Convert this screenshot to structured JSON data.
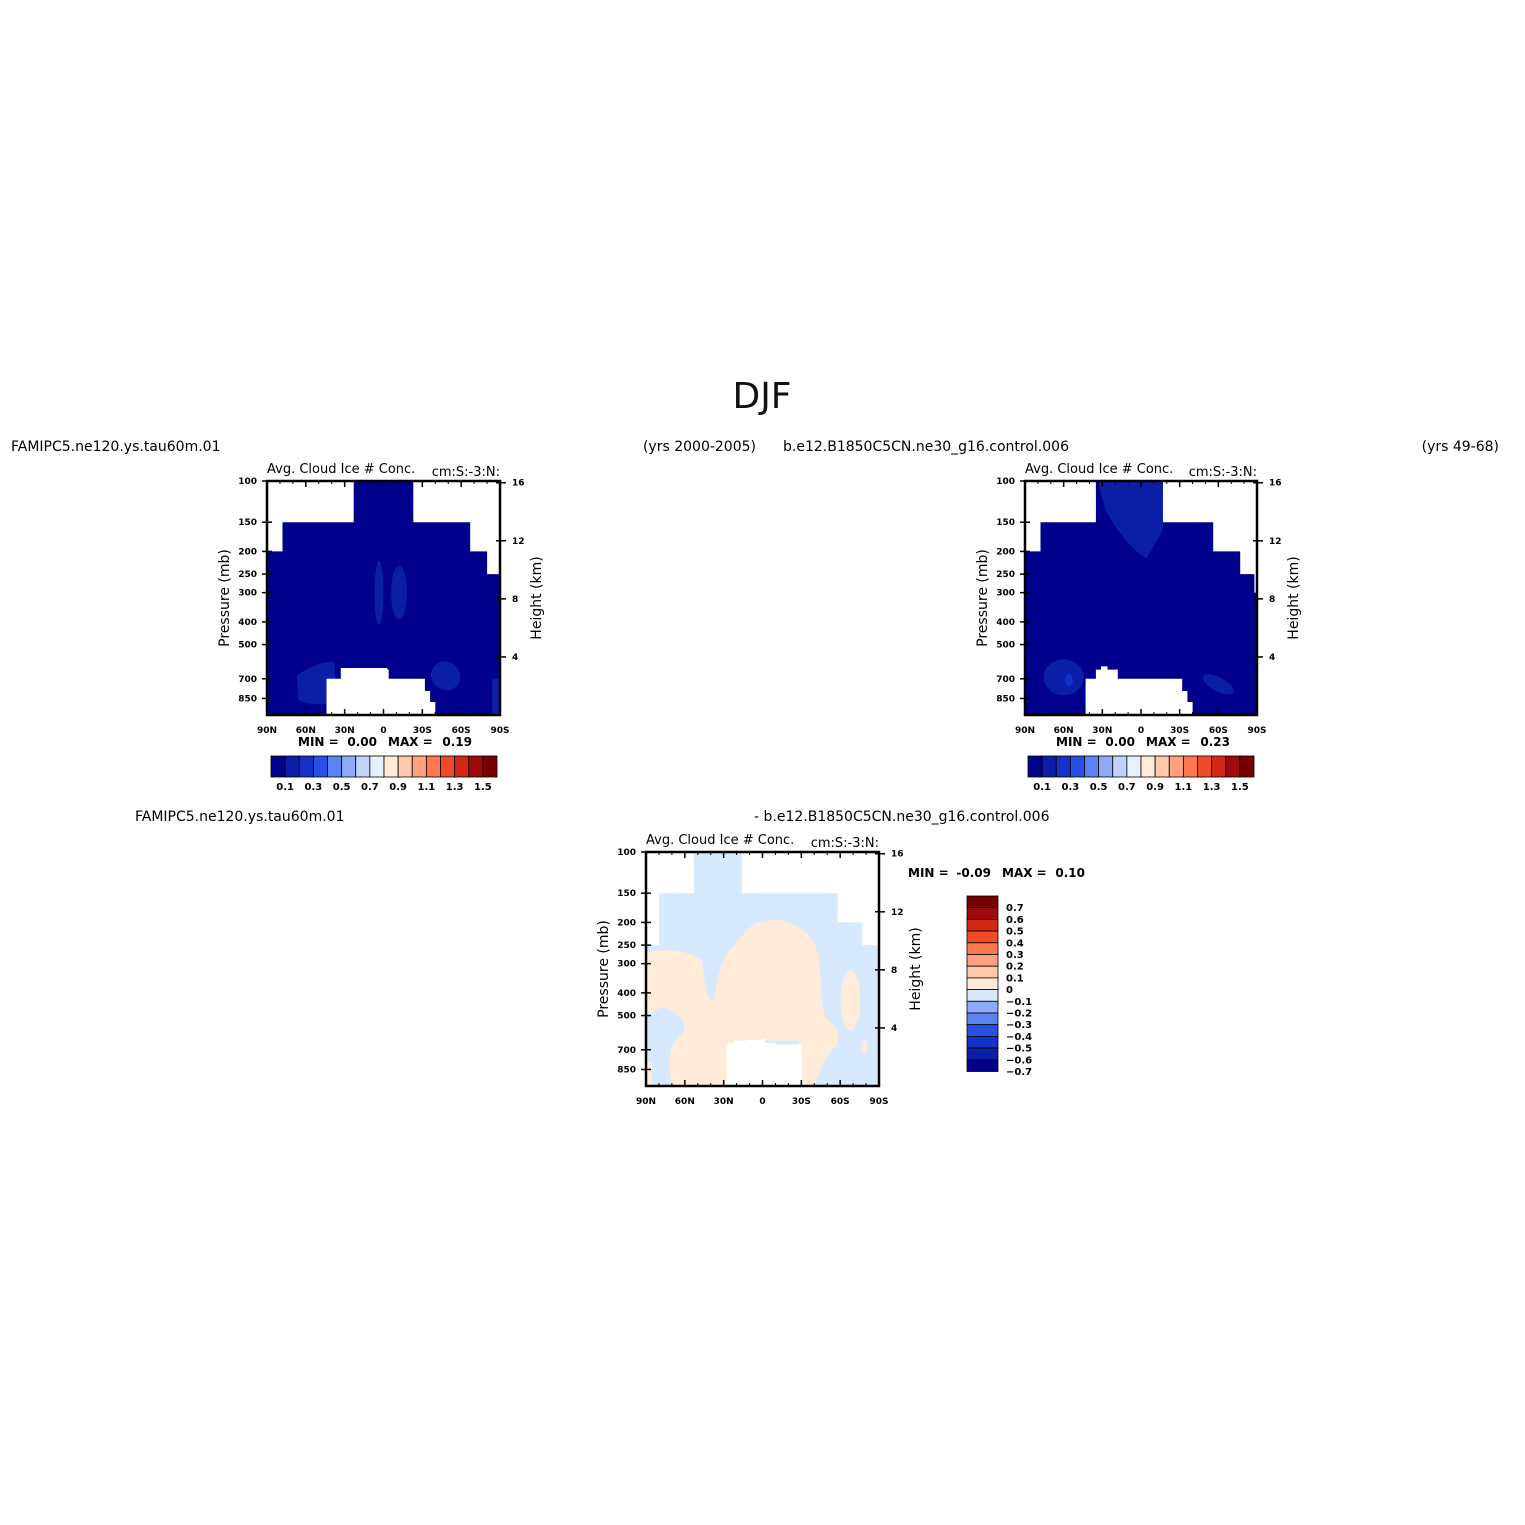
{
  "page": {
    "title": "DJF"
  },
  "colors": {
    "seq": [
      "#00008C",
      "#0A1EA8",
      "#1432C8",
      "#2850E6",
      "#5A82F0",
      "#8CAAF5",
      "#BED2FA",
      "#E6F0FF",
      "#FFEBD7",
      "#FFC8AA",
      "#FFA080",
      "#FF7850",
      "#F04B28",
      "#D22814",
      "#A00A0A",
      "#780000"
    ],
    "diff": [
      "#00008C",
      "#0A1EA8",
      "#1432C8",
      "#2850E6",
      "#5A82F0",
      "#8CAAF5",
      "#D7E9FF",
      "#FFEBD7",
      "#FFC8AA",
      "#FFA080",
      "#FF7850",
      "#F04B28",
      "#D22814",
      "#A00A0A",
      "#780000"
    ]
  },
  "chart_data": [
    {
      "type": "heatmap",
      "case": "FAMIPC5.ne120.ys.tau60m.01",
      "years": "(yrs 2000-2005)",
      "title": "Avg. Cloud Ice # Conc.",
      "units": "cm:S:-3:N:",
      "xlabel": "",
      "ylabel": "Pressure (mb)",
      "ylabel_right": "Height (km)",
      "x_ticks": [
        "90N",
        "60N",
        "30N",
        "0",
        "30S",
        "60S",
        "90S"
      ],
      "y_ticks": [
        100,
        150,
        200,
        250,
        300,
        400,
        500,
        700,
        850
      ],
      "y_right_ticks": [
        4,
        8,
        12,
        16
      ],
      "min_label": "MIN =",
      "min": "0.00",
      "max_label": "MAX =",
      "max": "0.19",
      "levels": [
        "0.1",
        "0.3",
        "0.5",
        "0.7",
        "0.9",
        "1.1",
        "1.3",
        "1.5"
      ],
      "field": "mostly 0-0.1 (darkest blue) with small 0.1-0.2 patches in upper tropics and lower mid-latitudes"
    },
    {
      "type": "heatmap",
      "case": "b.e12.B1850C5CN.ne30_g16.control.006",
      "years": "(yrs 49-68)",
      "title": "Avg. Cloud Ice # Conc.",
      "units": "cm:S:-3:N:",
      "xlabel": "",
      "ylabel": "Pressure (mb)",
      "ylabel_right": "Height (km)",
      "x_ticks": [
        "90N",
        "60N",
        "30N",
        "0",
        "30S",
        "60S",
        "90S"
      ],
      "y_ticks": [
        100,
        150,
        200,
        250,
        300,
        400,
        500,
        700,
        850
      ],
      "y_right_ticks": [
        4,
        8,
        12,
        16
      ],
      "min_label": "MIN =",
      "min": "0.00",
      "max_label": "MAX =",
      "max": "0.23",
      "levels": [
        "0.1",
        "0.3",
        "0.5",
        "0.7",
        "0.9",
        "1.1",
        "1.3",
        "1.5"
      ],
      "field": "mostly 0-0.1 (darkest blue) with 0.1-0.2 near tropical tropopause and lower mid-latitudes"
    },
    {
      "type": "heatmap",
      "case": "FAMIPC5.ne120.ys.tau60m.01",
      "case2": "- b.e12.B1850C5CN.ne30_g16.control.006",
      "title": "Avg. Cloud Ice # Conc.",
      "units": "cm:S:-3:N:",
      "xlabel": "",
      "ylabel": "Pressure (mb)",
      "ylabel_right": "Height (km)",
      "x_ticks": [
        "90N",
        "60N",
        "30N",
        "0",
        "30S",
        "60S",
        "90S"
      ],
      "y_ticks": [
        100,
        150,
        200,
        250,
        300,
        400,
        500,
        700,
        850
      ],
      "y_right_ticks": [
        4,
        8,
        12,
        16
      ],
      "min_label": "MIN =",
      "min": "-0.09",
      "max_label": "MAX =",
      "max": "0.10",
      "levels": [
        "0.7",
        "0.6",
        "0.5",
        "0.4",
        "0.3",
        "0.2",
        "0.1",
        "0",
        "-0.1",
        "-0.2",
        "-0.3",
        "-0.4",
        "-0.5",
        "-0.6",
        "-0.7"
      ],
      "field": "difference between -0.1 and 0.1: slightly negative (light blue) in upper and polar regions, slightly positive (light peach) in mid troposphere"
    }
  ]
}
